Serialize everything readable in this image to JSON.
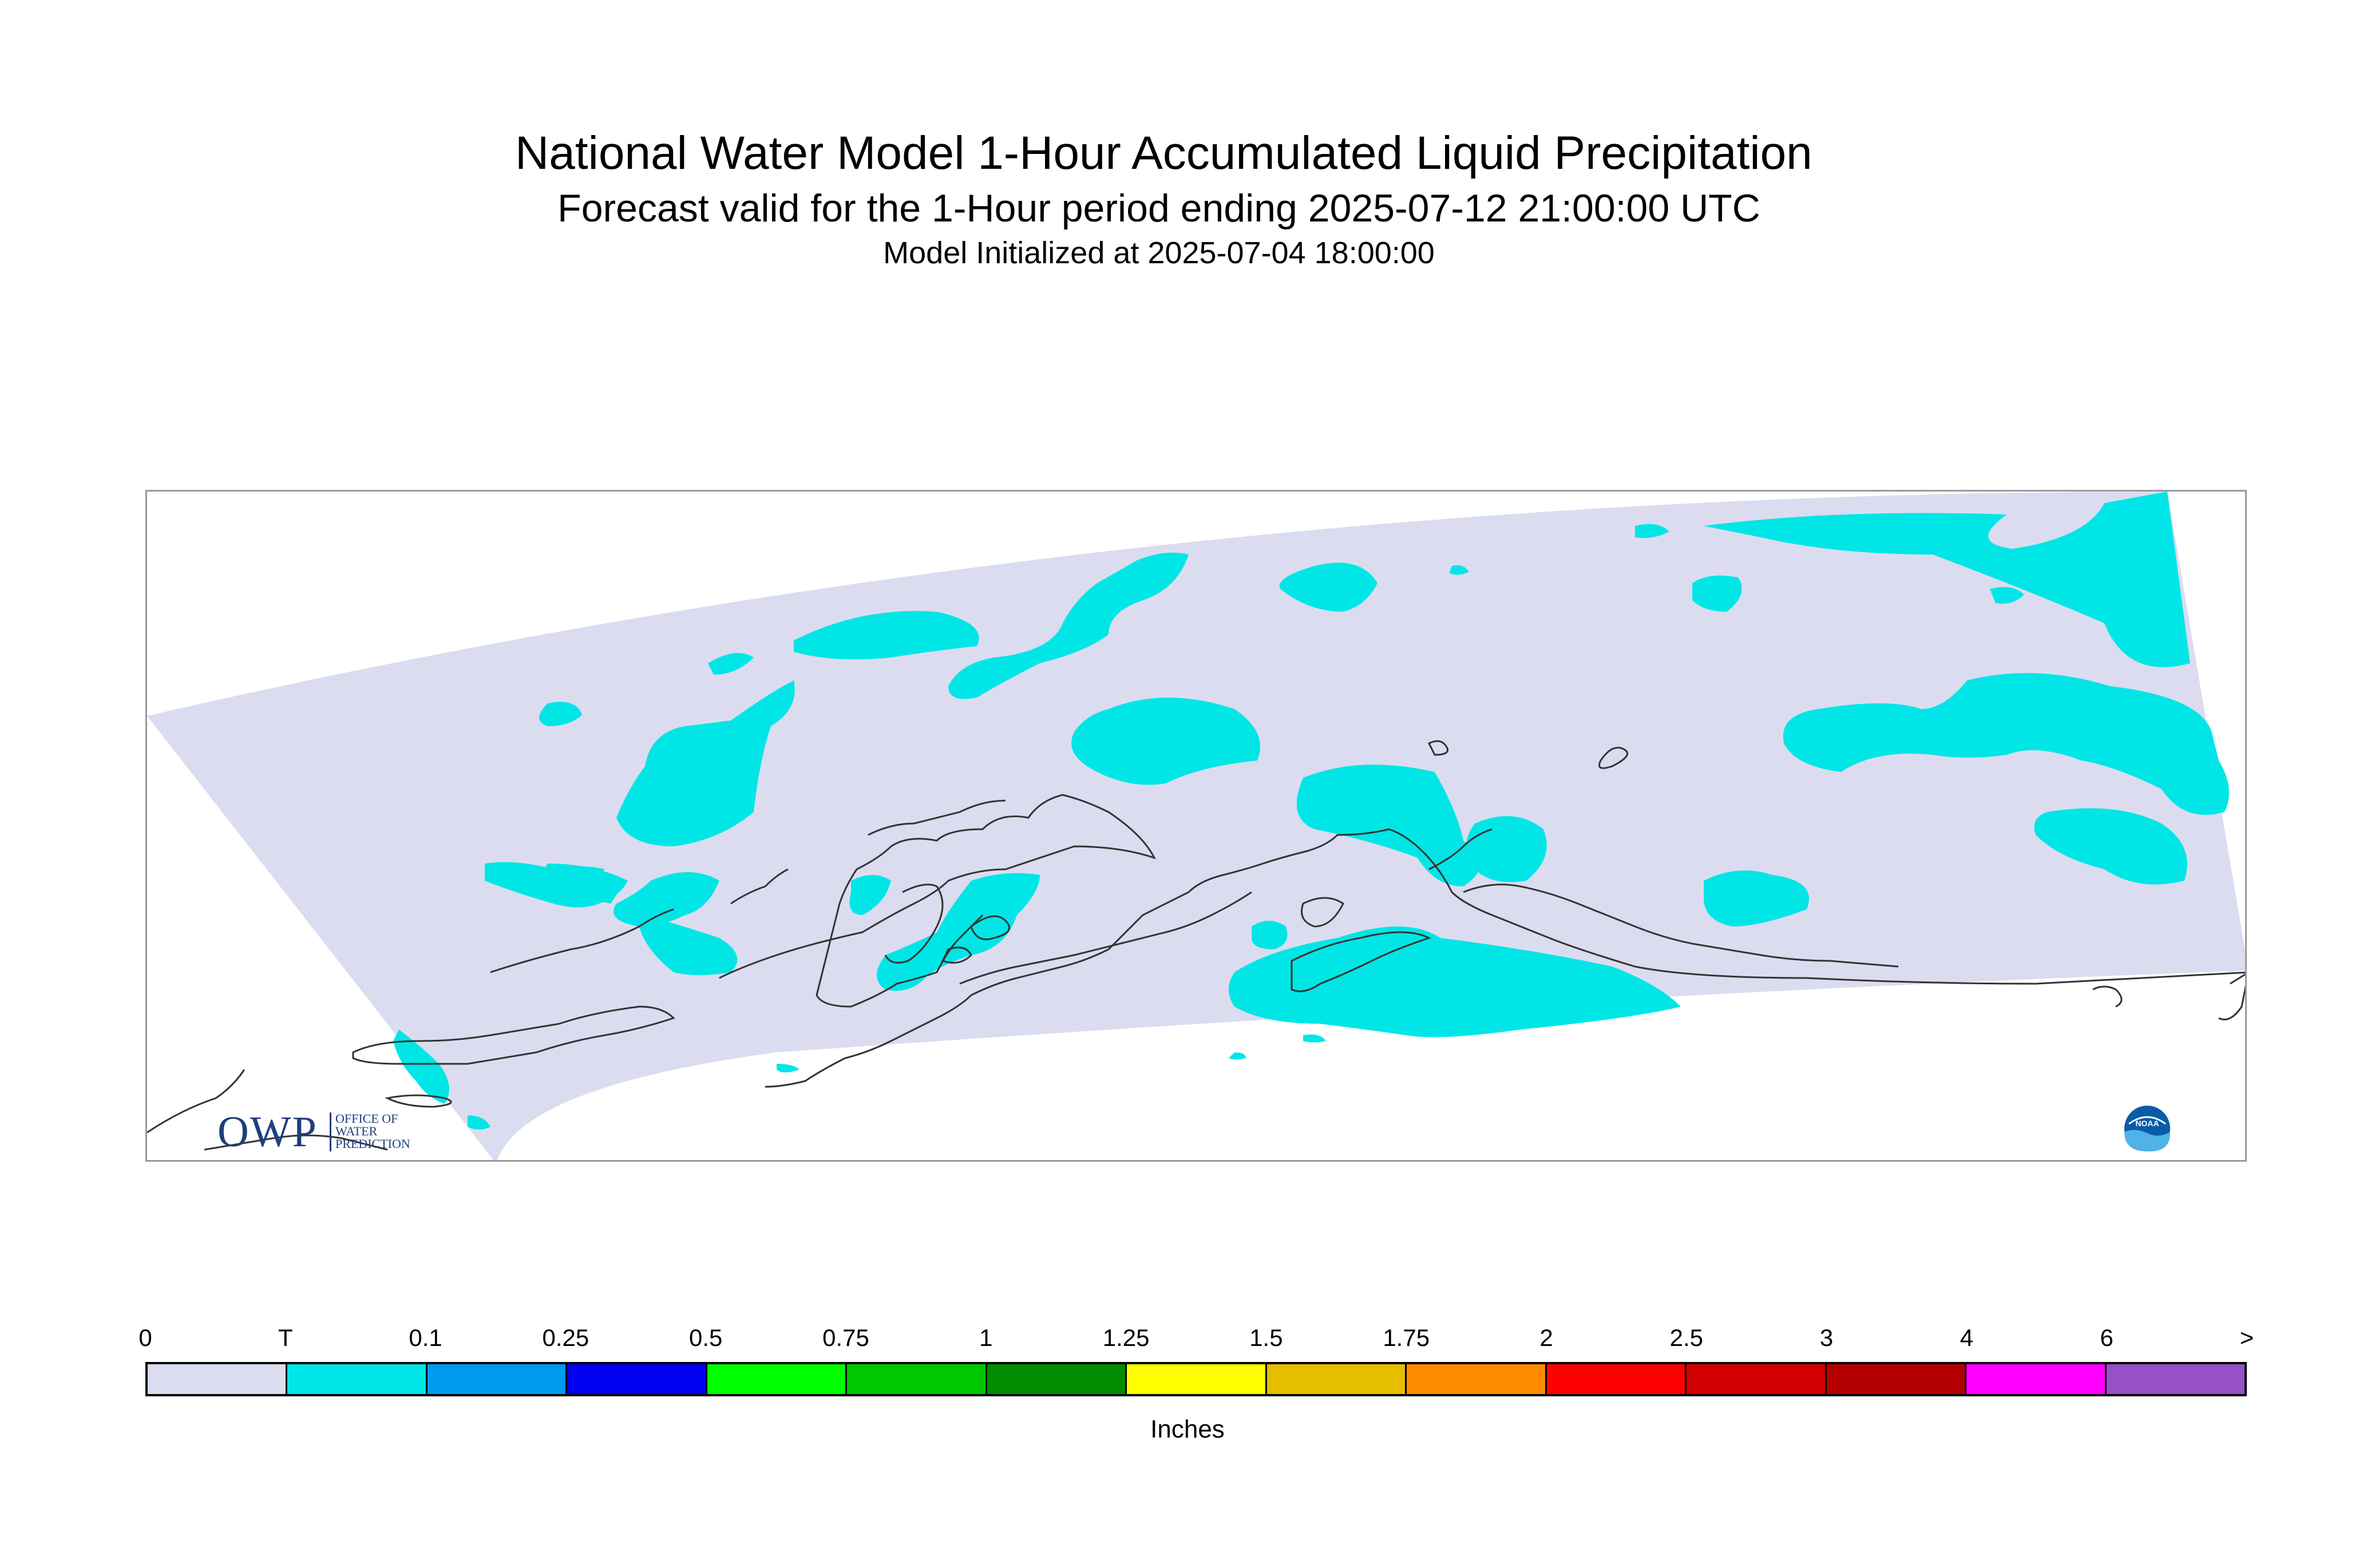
{
  "title": {
    "main": "National Water Model 1-Hour Accumulated Liquid Precipitation",
    "sub": "Forecast valid for the 1-Hour period ending 2025-07-12 21:00:00 UTC",
    "init": "Model Initialized at 2025-07-04 18:00:00"
  },
  "legend": {
    "units": "Inches",
    "ticks": [
      "0",
      "T",
      "0.1",
      "0.25",
      "0.5",
      "0.75",
      "1",
      "1.25",
      "1.5",
      "1.75",
      "2",
      "2.5",
      "3",
      "4",
      "6",
      ">"
    ],
    "colors": [
      "#dcdcf0",
      "#00e6e6",
      "#009bf0",
      "#0000f0",
      "#00ff00",
      "#00c800",
      "#008c00",
      "#ffff00",
      "#e6be00",
      "#ff8c00",
      "#ff0000",
      "#d20000",
      "#b40000",
      "#ff00ff",
      "#9650c8"
    ]
  },
  "map": {
    "domain_color": "#dcdcf0",
    "precip_color": "#00e6e6",
    "coastline_color": "#333333",
    "frame_color": "#9a9a9a"
  },
  "logos": {
    "owp_letters": "OWP",
    "owp_line1": "OFFICE OF",
    "owp_line2": "WATER",
    "owp_line3": "PREDICTION",
    "noaa_text": "NOAA"
  }
}
